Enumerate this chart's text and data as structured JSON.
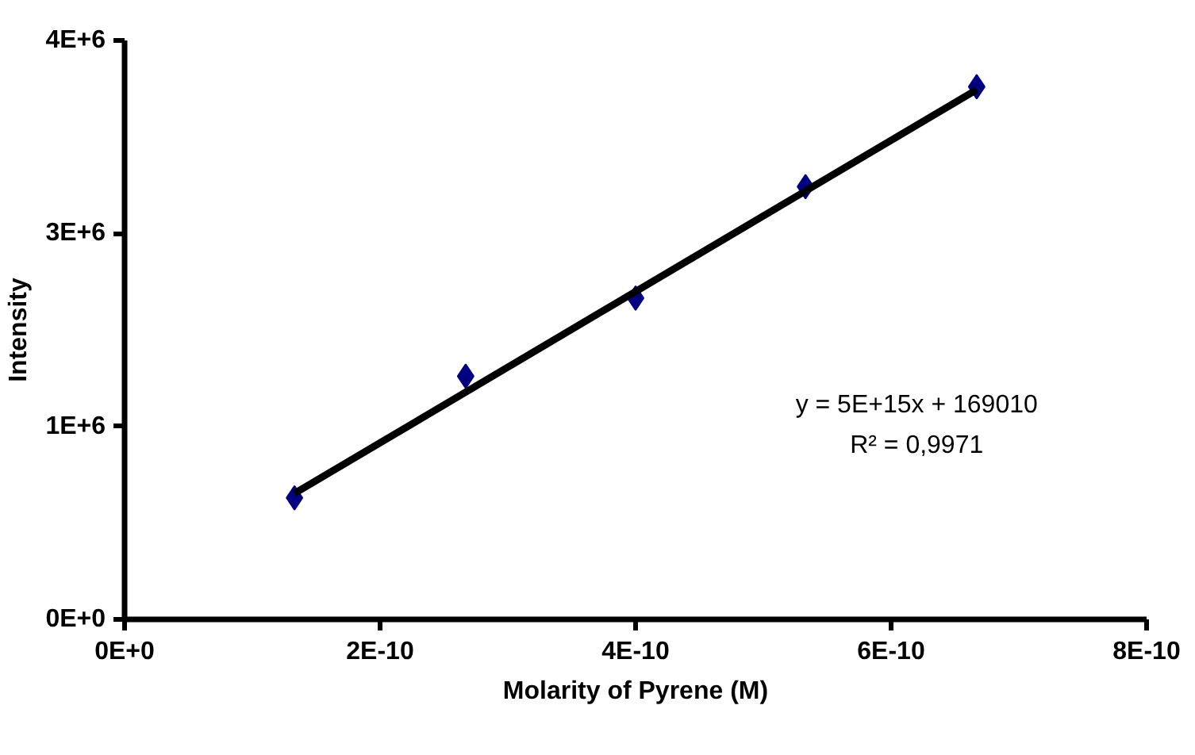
{
  "chart_data": {
    "type": "scatter",
    "xlabel": "Molarity of Pyrene (M)",
    "ylabel": "Intensity",
    "x": [
      1.33e-10,
      2.67e-10,
      4e-10,
      5.33e-10,
      6.67e-10
    ],
    "series": [
      {
        "color": "#000080",
        "marker": "diamond",
        "values": [
          840000,
          1680000,
          2220000,
          2990000,
          3680000
        ]
      },
      {
        "type": "line",
        "color": "#000000",
        "line_style": "solid",
        "marker": "none",
        "x": [
          1.33e-10,
          6.67e-10
        ],
        "values": [
          870000,
          3660000
        ]
      }
    ],
    "xlim": [
      0,
      8e-10
    ],
    "xticks": [
      {
        "value": 0,
        "label": "0E+0"
      },
      {
        "value": 2e-10,
        "label": "2E-10"
      },
      {
        "value": 4e-10,
        "label": "4E-10"
      },
      {
        "value": 6e-10,
        "label": "6E-10"
      },
      {
        "value": 8e-10,
        "label": "8E-10"
      }
    ],
    "ylim": [
      0,
      4000000
    ],
    "yticks": [
      {
        "value": 0,
        "label": "0E+0"
      },
      {
        "value": 1333333,
        "label": "1E+6"
      },
      {
        "value": 2666667,
        "label": "3E+6"
      },
      {
        "value": 4000000,
        "label": "4E+6"
      }
    ],
    "grid": false,
    "annotations": [
      "y = 5E+15x + 169010",
      "R² = 0,9971"
    ]
  }
}
